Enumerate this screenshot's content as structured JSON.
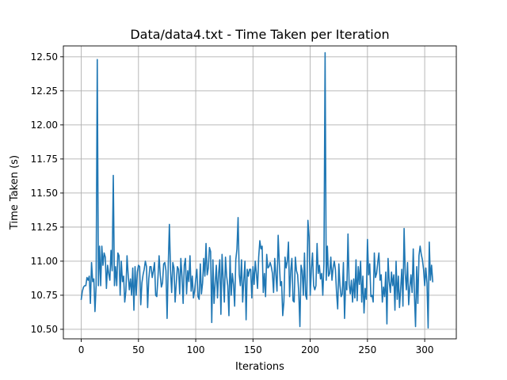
{
  "chart_data": {
    "type": "line",
    "title": "Data/data4.txt - Time Taken per Iteration",
    "xlabel": "Iterations",
    "ylabel": "Time Taken (s)",
    "xlim": [
      -15.6,
      327.6
    ],
    "ylim": [
      10.43,
      12.58
    ],
    "xticks": [
      0,
      50,
      100,
      150,
      200,
      250,
      300
    ],
    "yticks": [
      10.5,
      10.75,
      11.0,
      11.25,
      11.5,
      11.75,
      12.0,
      12.25,
      12.5
    ],
    "ytick_labels": [
      "10.50",
      "10.75",
      "11.00",
      "11.25",
      "11.50",
      "11.75",
      "12.00",
      "12.25",
      "12.50"
    ],
    "grid": true,
    "line_color": "#1f77b4",
    "series": [
      {
        "x_start": 0,
        "values": [
          10.72,
          10.78,
          10.81,
          10.82,
          10.82,
          10.88,
          10.86,
          10.89,
          10.69,
          10.99,
          10.85,
          10.87,
          10.63,
          10.82,
          12.48,
          10.82,
          11.11,
          10.82,
          11.11,
          10.97,
          11.06,
          11.03,
          10.8,
          10.97,
          10.91,
          10.86,
          11.08,
          10.93,
          11.63,
          10.82,
          10.96,
          10.82,
          11.06,
          11.04,
          10.75,
          11.0,
          10.85,
          10.89,
          10.7,
          10.78,
          11.04,
          10.9,
          10.79,
          10.87,
          10.75,
          10.95,
          10.64,
          10.96,
          10.75,
          10.92,
          10.97,
          10.96,
          10.68,
          10.84,
          10.9,
          10.94,
          11.0,
          10.96,
          10.66,
          10.87,
          10.96,
          10.96,
          10.88,
          10.93,
          10.99,
          10.75,
          10.74,
          10.88,
          11.04,
          10.9,
          10.81,
          10.84,
          10.98,
          10.99,
          10.93,
          10.58,
          10.97,
          11.27,
          10.93,
          10.77,
          10.99,
          10.95,
          10.7,
          10.84,
          10.96,
          10.94,
          10.76,
          11.02,
          10.89,
          10.69,
          10.97,
          11.02,
          10.76,
          10.93,
          10.85,
          11.04,
          10.78,
          10.89,
          10.73,
          10.78,
          10.87,
          10.94,
          10.74,
          10.72,
          10.98,
          10.76,
          10.84,
          11.02,
          10.89,
          11.13,
          10.9,
          10.95,
          11.1,
          11.07,
          10.55,
          11.01,
          10.69,
          10.84,
          10.97,
          10.73,
          10.91,
          11.01,
          10.61,
          11.05,
          10.87,
          10.7,
          11.03,
          10.89,
          10.82,
          10.6,
          11.04,
          10.75,
          10.91,
          10.83,
          10.67,
          11.01,
          11.09,
          11.32,
          10.9,
          10.82,
          11.01,
          10.7,
          10.86,
          11.0,
          10.57,
          10.94,
          10.89,
          10.94,
          10.94,
          10.73,
          10.96,
          10.83,
          11.0,
          10.91,
          10.8,
          11.03,
          11.15,
          11.09,
          11.11,
          10.77,
          10.91,
          10.74,
          11.05,
          10.95,
          10.96,
          10.99,
          10.96,
          10.91,
          10.77,
          11.02,
          10.9,
          10.78,
          11.19,
          10.99,
          10.82,
          10.85,
          10.6,
          10.7,
          11.03,
          10.95,
          11.0,
          11.14,
          10.74,
          10.93,
          11.02,
          10.71,
          10.7,
          11.03,
          10.93,
          10.9,
          10.77,
          10.52,
          10.97,
          10.93,
          10.75,
          11.06,
          10.75,
          10.72,
          11.3,
          11.18,
          10.75,
          10.94,
          11.06,
          10.82,
          10.79,
          10.82,
          11.13,
          10.91,
          10.97,
          10.87,
          10.91,
          10.75,
          10.98,
          12.53,
          10.86,
          11.11,
          10.89,
          10.91,
          11.03,
          10.86,
          10.95,
          11.0,
          10.94,
          10.77,
          10.65,
          10.98,
          10.82,
          10.74,
          10.76,
          10.99,
          10.58,
          10.85,
          10.79,
          11.2,
          10.83,
          10.76,
          10.86,
          10.7,
          10.87,
          10.73,
          11.01,
          10.71,
          10.96,
          10.83,
          11.0,
          10.7,
          10.89,
          10.62,
          10.8,
          10.72,
          11.16,
          10.9,
          10.98,
          10.74,
          10.75,
          10.7,
          11.06,
          10.88,
          10.91,
          10.99,
          11.06,
          10.86,
          10.9,
          10.7,
          10.81,
          10.74,
          10.92,
          10.54,
          11.02,
          10.85,
          10.77,
          10.92,
          10.82,
          10.9,
          10.64,
          11.0,
          10.72,
          10.89,
          10.66,
          10.8,
          10.94,
          10.67,
          11.24,
          10.91,
          10.79,
          10.99,
          10.68,
          10.81,
          10.9,
          10.77,
          11.09,
          10.76,
          10.52,
          10.96,
          10.69,
          11.04,
          11.11,
          11.05,
          11.01,
          10.94,
          10.82,
          10.95,
          10.84,
          10.51,
          11.14,
          10.86,
          10.97,
          10.85
        ]
      }
    ]
  }
}
